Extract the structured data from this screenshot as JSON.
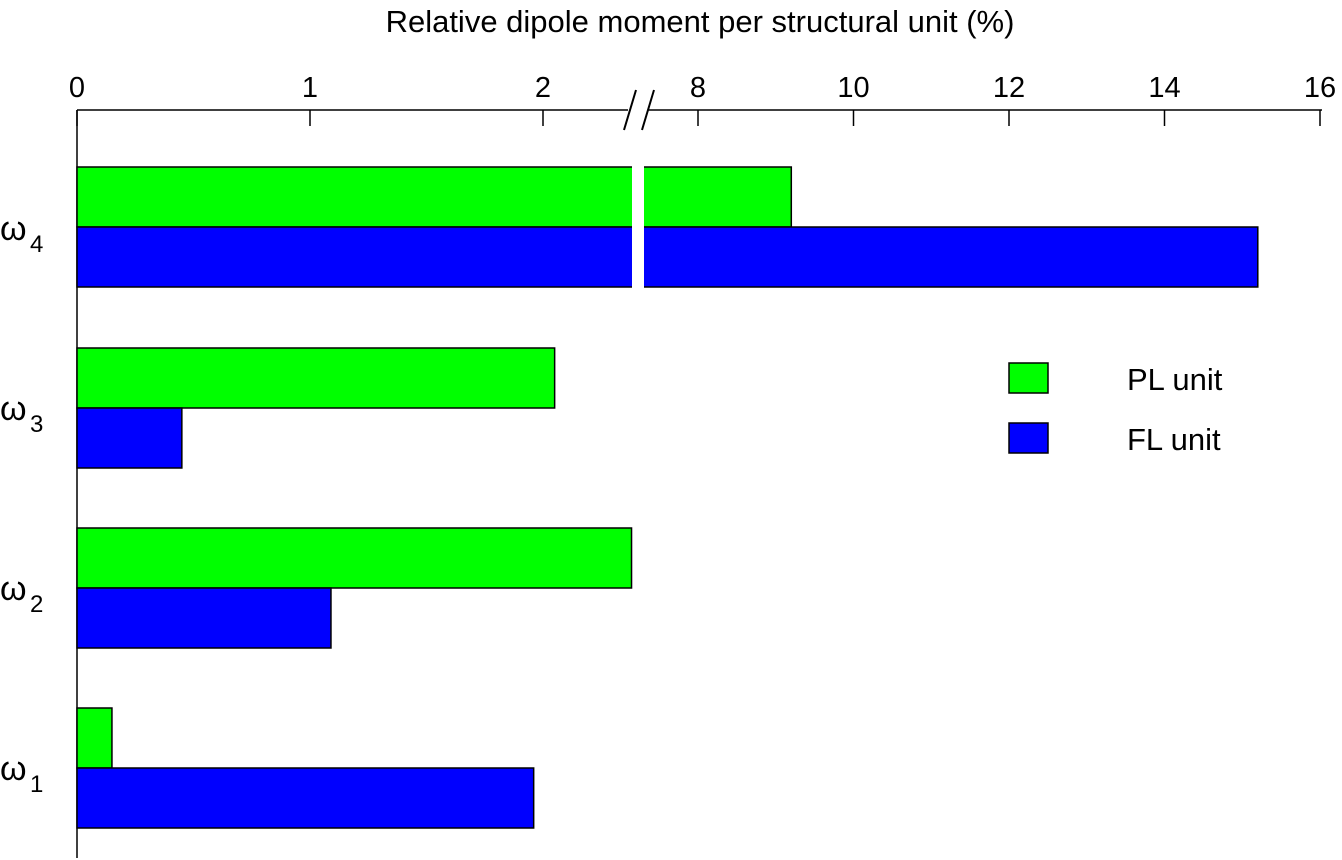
{
  "chart_data": {
    "type": "bar",
    "orientation": "horizontal",
    "xlabel": "Relative dipole moment per structural unit (%)",
    "ylabel": "",
    "x_axis_position": "top",
    "axis_break": {
      "lower_segment_range": [
        0,
        2.4
      ],
      "upper_segment_range": [
        7.5,
        16
      ]
    },
    "xticks": [
      {
        "value": 0,
        "label": "0"
      },
      {
        "value": 1,
        "label": "1"
      },
      {
        "value": 2,
        "label": "2"
      },
      {
        "value": 8,
        "label": "8"
      },
      {
        "value": 10,
        "label": "10"
      },
      {
        "value": 12,
        "label": "12"
      },
      {
        "value": 14,
        "label": "14"
      },
      {
        "value": 16,
        "label": "16"
      }
    ],
    "categories": [
      {
        "symbol": "ω",
        "sub": "4"
      },
      {
        "symbol": "ω",
        "sub": "3"
      },
      {
        "symbol": "ω",
        "sub": "2"
      },
      {
        "symbol": "ω",
        "sub": "1"
      }
    ],
    "series": [
      {
        "name": "PL unit",
        "color": "#00ff00",
        "values": [
          9.2,
          2.05,
          2.38,
          0.15
        ]
      },
      {
        "name": "FL unit",
        "color": "#0000ff",
        "values": [
          15.2,
          0.45,
          1.09,
          1.96
        ]
      }
    ],
    "legend_position": "right",
    "grid": false
  }
}
